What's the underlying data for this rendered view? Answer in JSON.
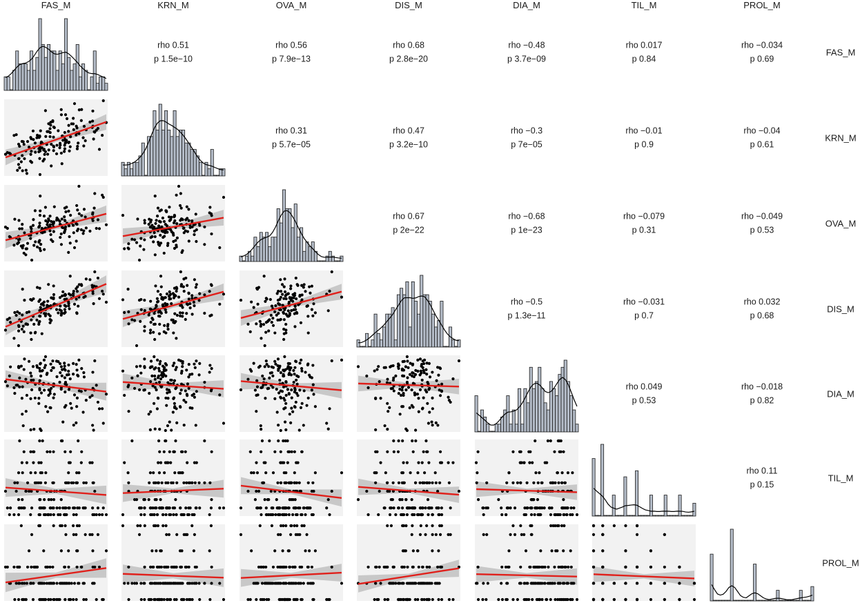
{
  "chart_data": {
    "type": "scatter-matrix",
    "variables": [
      "FAS_M",
      "KRN_M",
      "OVA_M",
      "DIS_M",
      "DIA_M",
      "TIL_M",
      "PROL_M"
    ],
    "upper_panels": [
      {
        "row": 0,
        "col": 1,
        "rho": "rho 0.51",
        "p": "p 1.5e−10"
      },
      {
        "row": 0,
        "col": 2,
        "rho": "rho 0.56",
        "p": "p 7.9e−13"
      },
      {
        "row": 0,
        "col": 3,
        "rho": "rho 0.68",
        "p": "p 2.8e−20"
      },
      {
        "row": 0,
        "col": 4,
        "rho": "rho −0.48",
        "p": "p 3.7e−09"
      },
      {
        "row": 0,
        "col": 5,
        "rho": "rho 0.017",
        "p": "p 0.84"
      },
      {
        "row": 0,
        "col": 6,
        "rho": "rho −0.034",
        "p": "p 0.69"
      },
      {
        "row": 1,
        "col": 2,
        "rho": "rho 0.31",
        "p": "p 5.7e−05"
      },
      {
        "row": 1,
        "col": 3,
        "rho": "rho 0.47",
        "p": "p 3.2e−10"
      },
      {
        "row": 1,
        "col": 4,
        "rho": "rho −0.3",
        "p": "p 7e−05"
      },
      {
        "row": 1,
        "col": 5,
        "rho": "rho −0.01",
        "p": "p 0.9"
      },
      {
        "row": 1,
        "col": 6,
        "rho": "rho −0.04",
        "p": "p 0.61"
      },
      {
        "row": 2,
        "col": 3,
        "rho": "rho 0.67",
        "p": "p 2e−22"
      },
      {
        "row": 2,
        "col": 4,
        "rho": "rho −0.68",
        "p": "p 1e−23"
      },
      {
        "row": 2,
        "col": 5,
        "rho": "rho −0.079",
        "p": "p 0.31"
      },
      {
        "row": 2,
        "col": 6,
        "rho": "rho −0.049",
        "p": "p 0.53"
      },
      {
        "row": 3,
        "col": 4,
        "rho": "rho −0.5",
        "p": "p 1.3e−11"
      },
      {
        "row": 3,
        "col": 5,
        "rho": "rho −0.031",
        "p": "p 0.7"
      },
      {
        "row": 3,
        "col": 6,
        "rho": "rho 0.032",
        "p": "p 0.68"
      },
      {
        "row": 4,
        "col": 5,
        "rho": "rho 0.049",
        "p": "p 0.53"
      },
      {
        "row": 4,
        "col": 6,
        "rho": "rho −0.018",
        "p": "p 0.82"
      },
      {
        "row": 5,
        "col": 6,
        "rho": "rho 0.11",
        "p": "p 0.15"
      }
    ],
    "lower_panels": {
      "type": "scatter",
      "point_color": "#000000",
      "fit_line_color": "#e0201b",
      "confidence_band_color": "#bdbdbd",
      "background_color": "#f2f2f2"
    },
    "diagonal": {
      "type": "histogram",
      "bar_fill": "#b4bcc8",
      "bar_stroke": "#1a1a1a",
      "density_color": "#000000"
    },
    "approx_correlation_r": [
      [
        1,
        0.51,
        0.56,
        0.68,
        -0.48,
        0.017,
        -0.034
      ],
      [
        0.51,
        1,
        0.31,
        0.47,
        -0.3,
        -0.01,
        -0.04
      ],
      [
        0.56,
        0.31,
        1,
        0.67,
        -0.68,
        -0.079,
        -0.049
      ],
      [
        0.68,
        0.47,
        0.67,
        1,
        -0.5,
        -0.031,
        0.032
      ],
      [
        -0.48,
        -0.3,
        -0.68,
        -0.5,
        1,
        0.049,
        -0.018
      ],
      [
        0.017,
        -0.01,
        -0.079,
        -0.031,
        0.049,
        1,
        0.11
      ],
      [
        -0.034,
        -0.04,
        -0.049,
        0.032,
        -0.018,
        0.11,
        1
      ]
    ]
  }
}
